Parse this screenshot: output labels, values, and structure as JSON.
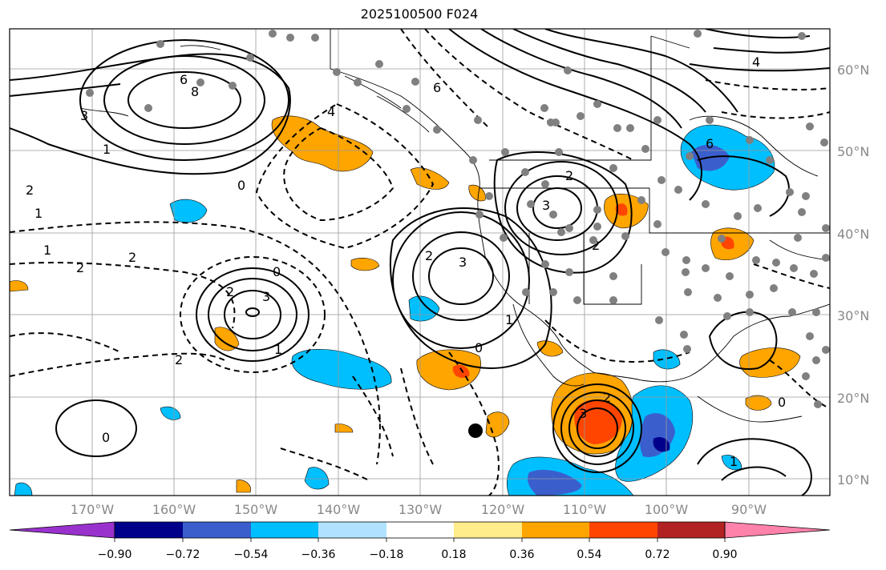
{
  "map": {
    "title": "2025100500 F024",
    "lat_labels": [
      "60°N",
      "50°N",
      "40°N",
      "30°N",
      "20°N",
      "10°N"
    ],
    "lon_labels": [
      "170°W",
      "160°W",
      "150°W",
      "140°W",
      "130°W",
      "120°W",
      "110°W",
      "100°W",
      "90°W"
    ],
    "contour_labels": [
      "8",
      "6",
      "3",
      "1",
      "2",
      "1",
      "2",
      "0",
      "2",
      "4",
      "6",
      "3",
      "2",
      "3",
      "2",
      "0",
      "1",
      "1",
      "2",
      "6",
      "4",
      "3",
      "2",
      "2",
      "0",
      "1",
      "0",
      "1",
      "2",
      "0",
      "3"
    ],
    "colors": {
      "c1": "#9932cc",
      "c2": "#00008b",
      "c3": "#3a5fcd",
      "c4": "#00bfff",
      "c5": "#b0e2ff",
      "c6": "#ffffff",
      "c7": "#ffec8b",
      "c8": "#ffa500",
      "c9": "#ff4500",
      "c10": "#b22222",
      "c11": "#ff82ab"
    }
  },
  "colorbar": {
    "labels": [
      "−0.90",
      "−0.72",
      "−0.54",
      "−0.36",
      "−0.18",
      "0.18",
      "0.36",
      "0.54",
      "0.72",
      "0.90"
    ]
  }
}
